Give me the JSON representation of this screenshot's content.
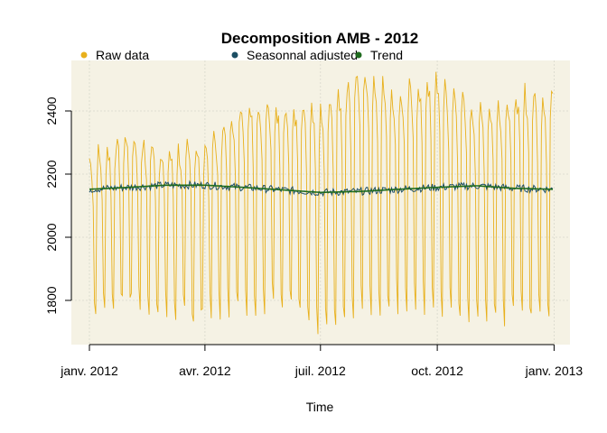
{
  "chart_data": {
    "type": "line",
    "title": "Decomposition AMB - 2012",
    "xlabel": "Time",
    "ylabel": "",
    "x_range": [
      "2012-01-01",
      "2012-12-31"
    ],
    "ylim": [
      1660,
      2560
    ],
    "grid": true,
    "legend_position": "top",
    "background_color": "#F5F2E4",
    "x_ticks": [
      {
        "date": "2012-01-01",
        "label": "janv. 2012"
      },
      {
        "date": "2012-04-01",
        "label": "avr. 2012"
      },
      {
        "date": "2012-07-01",
        "label": "juil. 2012"
      },
      {
        "date": "2012-10-01",
        "label": "oct. 2012"
      },
      {
        "date": "2013-01-01",
        "label": "janv. 2013"
      }
    ],
    "y_ticks": [
      {
        "value": 1800,
        "label": "1800"
      },
      {
        "value": 2000,
        "label": "2000"
      },
      {
        "value": 2200,
        "label": "2200"
      },
      {
        "value": 2400,
        "label": "2400"
      }
    ],
    "series": [
      {
        "name": "Raw data",
        "color": "#E8B01C",
        "weekly_pattern": {
          "approx_weekly_peaks": [
            [
              "2012-01-01",
              2250
            ],
            [
              "2012-02-01",
              2330
            ],
            [
              "2012-03-01",
              2270
            ],
            [
              "2012-04-01",
              2300
            ],
            [
              "2012-05-01",
              2430
            ],
            [
              "2012-06-01",
              2420
            ],
            [
              "2012-07-01",
              2390
            ],
            [
              "2012-08-01",
              2540
            ],
            [
              "2012-09-01",
              2460
            ],
            [
              "2012-10-01",
              2520
            ],
            [
              "2012-11-01",
              2400
            ],
            [
              "2012-12-01",
              2460
            ]
          ],
          "approx_weekly_troughs": [
            [
              "2012-01-01",
              1750
            ],
            [
              "2012-02-01",
              1790
            ],
            [
              "2012-03-01",
              1760
            ],
            [
              "2012-04-01",
              1740
            ],
            [
              "2012-05-01",
              1780
            ],
            [
              "2012-06-01",
              1800
            ],
            [
              "2012-07-01",
              1690
            ],
            [
              "2012-08-01",
              1780
            ],
            [
              "2012-09-01",
              1790
            ],
            [
              "2012-10-01",
              1760
            ],
            [
              "2012-11-01",
              1760
            ],
            [
              "2012-12-01",
              1750
            ]
          ]
        }
      },
      {
        "name": "Seasonnal adjusted",
        "color": "#1C4E63",
        "approx_level": 2155,
        "noise_amplitude": 12
      },
      {
        "name": "Trend",
        "color": "#1E6B1E",
        "values_by_month": [
          [
            "2012-01-01",
            2152
          ],
          [
            "2012-02-01",
            2158
          ],
          [
            "2012-03-01",
            2165
          ],
          [
            "2012-04-01",
            2165
          ],
          [
            "2012-05-01",
            2158
          ],
          [
            "2012-06-01",
            2150
          ],
          [
            "2012-07-01",
            2142
          ],
          [
            "2012-08-01",
            2145
          ],
          [
            "2012-09-01",
            2152
          ],
          [
            "2012-10-01",
            2158
          ],
          [
            "2012-11-01",
            2163
          ],
          [
            "2012-12-01",
            2155
          ],
          [
            "2012-12-31",
            2152
          ]
        ]
      }
    ]
  }
}
